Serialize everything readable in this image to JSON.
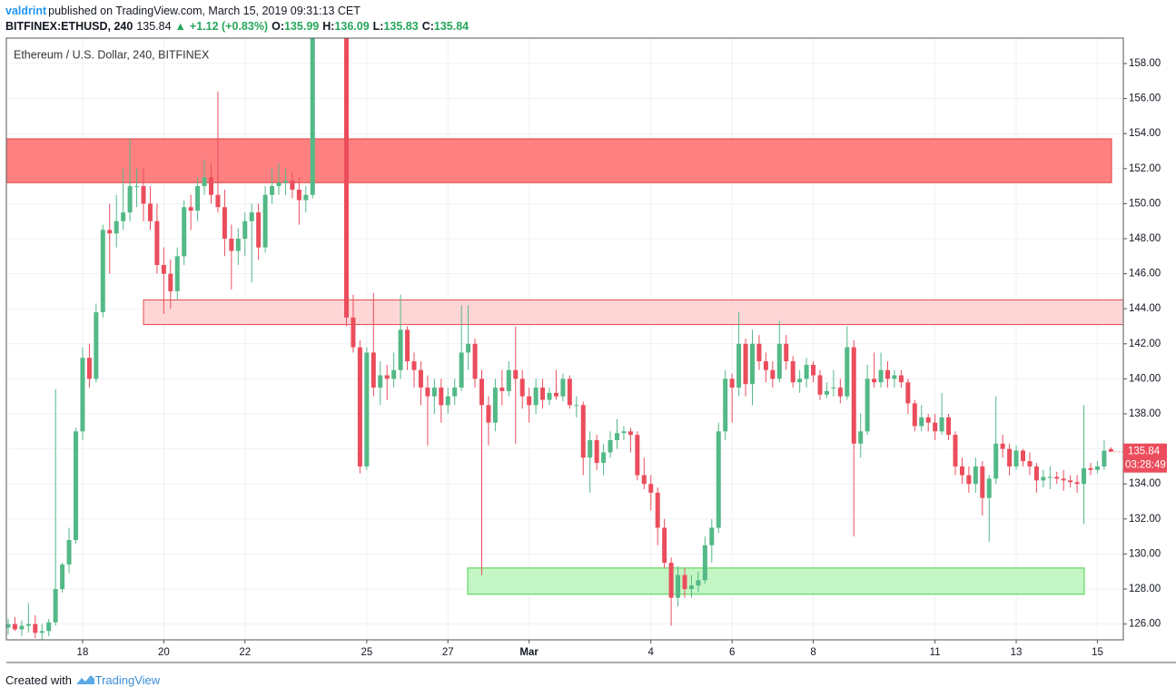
{
  "header": {
    "author": "valdrint",
    "published": "published on TradingView.com, March 15, 2019 09:31:13 CET",
    "symbol": "BITFINEX:ETHUSD, 240",
    "last": "135.84",
    "arrow": "▲",
    "change": "+1.12 (+0.83%)",
    "open_label": "O:",
    "open": "135.99",
    "high_label": "H:",
    "high": "136.09",
    "low_label": "L:",
    "low": "135.83",
    "close_label": "C:",
    "close": "135.84"
  },
  "footer": {
    "created": "Created with",
    "brand": "TradingView"
  },
  "chart_data": {
    "type": "candlestick",
    "title": "Ethereum / U.S. Dollar, 240, BITFINEX",
    "up_color": "#53b987",
    "down_color": "#eb4d5c",
    "grid": true,
    "countdown": "03:28:49",
    "ylim": [
      125.1,
      159.45
    ],
    "yticks": [
      {
        "value": 126,
        "label": "126.00"
      },
      {
        "value": 128,
        "label": "128.00"
      },
      {
        "value": 130,
        "label": "130.00"
      },
      {
        "value": 132,
        "label": "132.00"
      },
      {
        "value": 134,
        "label": "134.00"
      },
      {
        "value": 136,
        "label": "136.00"
      },
      {
        "value": 138,
        "label": "138.00"
      },
      {
        "value": 140,
        "label": "140.00"
      },
      {
        "value": 142,
        "label": "142.00"
      },
      {
        "value": 144,
        "label": "144.00"
      },
      {
        "value": 146,
        "label": "146.00"
      },
      {
        "value": 148,
        "label": "148.00"
      },
      {
        "value": 150,
        "label": "150.00"
      },
      {
        "value": 152,
        "label": "152.00"
      },
      {
        "value": 154,
        "label": "154.00"
      },
      {
        "value": 156,
        "label": "156.00"
      },
      {
        "value": 158,
        "label": "158.00"
      }
    ],
    "zones": [
      {
        "low": 151.2,
        "high": 153.7,
        "fill": "#ff8080",
        "stroke": "#e03c3c"
      },
      {
        "low": 143.1,
        "high": 144.5,
        "fill": "#ffd6d6",
        "stroke": "#e04848"
      },
      {
        "low": 127.7,
        "high": 129.2,
        "fill": "#c4f5c4",
        "stroke": "#4cd04c"
      }
    ],
    "categories": [
      null,
      null,
      null,
      null,
      null,
      null,
      null,
      null,
      null,
      null,
      null,
      "18",
      null,
      null,
      null,
      null,
      null,
      null,
      null,
      null,
      null,
      null,
      null,
      "20",
      null,
      null,
      null,
      null,
      null,
      null,
      null,
      null,
      null,
      null,
      null,
      "22",
      null,
      null,
      null,
      null,
      null,
      null,
      null,
      null,
      null,
      null,
      null,
      null,
      null,
      null,
      null,
      null,
      null,
      "25",
      null,
      null,
      null,
      null,
      null,
      null,
      null,
      null,
      null,
      null,
      null,
      "27",
      null,
      null,
      null,
      null,
      null,
      null,
      null,
      null,
      null,
      null,
      null,
      "Mar",
      null,
      null,
      null,
      null,
      null,
      null,
      null,
      null,
      null,
      null,
      null,
      null,
      null,
      null,
      null,
      null,
      null,
      "4",
      null,
      null,
      null,
      null,
      null,
      null,
      null,
      null,
      null,
      null,
      null,
      "6",
      null,
      null,
      null,
      null,
      null,
      null,
      null,
      null,
      null,
      null,
      null,
      "8",
      null,
      null,
      null,
      null,
      null,
      null,
      null,
      null,
      null,
      null,
      null,
      null,
      null,
      null,
      null,
      null,
      null,
      "11",
      null,
      null,
      null,
      null,
      null,
      null,
      null,
      null,
      null,
      null,
      null,
      "13",
      null,
      null,
      null,
      null,
      null,
      null,
      null,
      null,
      null,
      null,
      null,
      "15",
      null,
      null
    ],
    "ohlc": [
      [
        125.8,
        126.3,
        125.4,
        126.0
      ],
      [
        126.0,
        126.4,
        125.6,
        125.7
      ],
      [
        125.7,
        126.2,
        125.3,
        125.9
      ],
      [
        125.9,
        127.2,
        125.5,
        126.0
      ],
      [
        126.0,
        126.5,
        125.2,
        125.5
      ],
      [
        125.5,
        126.0,
        125.1,
        125.6
      ],
      [
        125.6,
        126.3,
        125.3,
        126.1
      ],
      [
        126.1,
        139.4,
        125.9,
        128.0
      ],
      [
        128.0,
        129.5,
        127.8,
        129.4
      ],
      [
        129.4,
        131.5,
        128.9,
        130.8
      ],
      [
        130.8,
        137.2,
        130.6,
        137.0
      ],
      [
        137.0,
        141.8,
        136.5,
        141.2
      ],
      [
        141.2,
        142.0,
        139.5,
        140.0
      ],
      [
        140.0,
        144.3,
        139.8,
        143.8
      ],
      [
        143.8,
        148.8,
        143.5,
        148.5
      ],
      [
        148.5,
        150.0,
        146.0,
        148.3
      ],
      [
        148.3,
        150.5,
        147.5,
        149.0
      ],
      [
        149.0,
        152.0,
        148.5,
        149.5
      ],
      [
        149.5,
        153.7,
        149.0,
        151.0
      ],
      [
        151.0,
        152.0,
        149.8,
        151.0
      ],
      [
        151.0,
        152.0,
        149.0,
        150.0
      ],
      [
        150.0,
        151.0,
        148.5,
        149.0
      ],
      [
        149.0,
        150.0,
        146.0,
        146.5
      ],
      [
        146.5,
        147.5,
        143.7,
        146.0
      ],
      [
        146.0,
        146.8,
        144.0,
        145.0
      ],
      [
        145.0,
        147.5,
        144.5,
        147.0
      ],
      [
        147.0,
        150.2,
        146.5,
        149.8
      ],
      [
        149.8,
        150.5,
        148.5,
        149.6
      ],
      [
        149.6,
        151.5,
        149.0,
        151.0
      ],
      [
        151.0,
        152.5,
        150.5,
        151.5
      ],
      [
        151.5,
        152.3,
        150.0,
        150.5
      ],
      [
        150.5,
        156.4,
        149.5,
        149.8
      ],
      [
        149.8,
        150.8,
        147.0,
        148.0
      ],
      [
        148.0,
        148.8,
        145.1,
        147.3
      ],
      [
        147.3,
        148.6,
        146.5,
        148.0
      ],
      [
        148.0,
        149.5,
        147.0,
        149.0
      ],
      [
        149.0,
        150.0,
        145.5,
        149.5
      ],
      [
        149.5,
        150.0,
        146.8,
        147.5
      ],
      [
        147.5,
        151.0,
        147.2,
        150.5
      ],
      [
        150.5,
        152.0,
        150.0,
        151.0
      ],
      [
        151.0,
        152.3,
        150.5,
        151.2
      ],
      [
        151.2,
        152.0,
        150.5,
        151.3
      ],
      [
        151.3,
        151.8,
        150.3,
        150.8
      ],
      [
        150.8,
        151.5,
        148.8,
        150.2
      ],
      [
        150.2,
        151.0,
        149.5,
        150.5
      ],
      [
        150.5,
        162.0,
        150.3,
        161.0
      ],
      null,
      null,
      null,
      null,
      [
        160.5,
        161.0,
        143.0,
        143.5
      ],
      [
        143.5,
        144.8,
        141.5,
        141.8
      ],
      [
        141.8,
        142.2,
        134.6,
        135.0
      ],
      [
        135.0,
        141.8,
        134.8,
        141.5
      ],
      [
        141.5,
        144.9,
        139.0,
        139.5
      ],
      [
        139.5,
        141.0,
        138.5,
        140.2
      ],
      [
        140.2,
        140.8,
        138.8,
        140.0
      ],
      [
        140.0,
        141.5,
        139.5,
        140.5
      ],
      [
        140.5,
        144.8,
        140.0,
        142.8
      ],
      [
        142.8,
        143.0,
        140.5,
        141.0
      ],
      [
        141.0,
        141.5,
        139.5,
        140.5
      ],
      [
        140.5,
        141.0,
        138.5,
        139.5
      ],
      [
        139.5,
        140.2,
        136.2,
        139.0
      ],
      [
        139.0,
        140.0,
        138.0,
        139.5
      ],
      [
        139.5,
        140.0,
        137.5,
        138.5
      ],
      [
        138.5,
        139.5,
        138.0,
        139.0
      ],
      [
        139.0,
        140.0,
        138.5,
        139.5
      ],
      [
        139.5,
        144.2,
        139.3,
        141.5
      ],
      [
        141.5,
        144.2,
        140.5,
        142.0
      ],
      [
        142.0,
        142.3,
        139.5,
        140.0
      ],
      [
        140.0,
        140.5,
        128.8,
        138.5
      ],
      [
        138.5,
        139.0,
        136.2,
        137.5
      ],
      [
        137.5,
        140.0,
        137.0,
        139.5
      ],
      [
        139.5,
        140.5,
        138.5,
        139.3
      ],
      [
        139.3,
        141.0,
        139.0,
        140.5
      ],
      [
        140.5,
        143.0,
        136.3,
        140.0
      ],
      [
        140.0,
        140.5,
        138.3,
        139.0
      ],
      [
        139.0,
        139.5,
        137.5,
        138.5
      ],
      [
        138.5,
        140.0,
        138.0,
        139.5
      ],
      [
        139.5,
        140.0,
        138.3,
        138.8
      ],
      [
        138.8,
        139.5,
        138.5,
        139.2
      ],
      [
        139.2,
        140.5,
        138.8,
        139.0
      ],
      [
        139.0,
        140.3,
        138.7,
        140.0
      ],
      [
        140.0,
        140.2,
        138.3,
        138.5
      ],
      [
        138.5,
        139.0,
        137.8,
        138.5
      ],
      [
        138.5,
        138.7,
        134.5,
        135.5
      ],
      [
        135.5,
        137.0,
        133.5,
        136.5
      ],
      [
        136.5,
        136.8,
        134.8,
        135.2
      ],
      [
        135.2,
        136.3,
        134.5,
        135.8
      ],
      [
        135.8,
        137.0,
        135.5,
        136.5
      ],
      [
        136.5,
        137.7,
        136.0,
        136.9
      ],
      [
        136.9,
        137.3,
        136.5,
        137.0
      ],
      [
        137.0,
        137.2,
        135.8,
        136.8
      ],
      [
        136.8,
        137.0,
        134.2,
        134.5
      ],
      [
        134.5,
        135.5,
        133.7,
        134.0
      ],
      [
        134.0,
        134.5,
        132.5,
        133.5
      ],
      [
        133.5,
        133.8,
        130.5,
        131.5
      ],
      [
        131.5,
        132.0,
        129.2,
        129.5
      ],
      [
        129.5,
        129.8,
        125.9,
        127.5
      ],
      [
        127.5,
        129.3,
        127.0,
        128.8
      ],
      [
        128.8,
        129.2,
        127.5,
        128.0
      ],
      [
        128.0,
        128.8,
        127.5,
        128.2
      ],
      [
        128.2,
        129.0,
        127.8,
        128.5
      ],
      [
        128.5,
        131.0,
        128.3,
        130.5
      ],
      [
        130.5,
        132.0,
        129.5,
        131.5
      ],
      [
        131.5,
        137.5,
        131.2,
        137.0
      ],
      [
        137.0,
        140.5,
        136.5,
        140.0
      ],
      [
        140.0,
        140.3,
        137.5,
        139.5
      ],
      [
        139.5,
        143.8,
        139.0,
        142.0
      ],
      [
        142.0,
        142.3,
        139.0,
        139.7
      ],
      [
        139.7,
        142.8,
        138.5,
        142.0
      ],
      [
        142.0,
        142.5,
        140.5,
        141.0
      ],
      [
        141.0,
        141.5,
        139.8,
        140.5
      ],
      [
        140.5,
        141.0,
        139.5,
        140.0
      ],
      [
        140.0,
        143.3,
        139.8,
        142.0
      ],
      [
        142.0,
        142.5,
        140.5,
        141.0
      ],
      [
        141.0,
        141.3,
        139.5,
        139.8
      ],
      [
        139.8,
        140.5,
        139.2,
        140.0
      ],
      [
        140.0,
        141.2,
        139.5,
        140.8
      ],
      [
        140.8,
        141.0,
        139.8,
        140.2
      ],
      [
        140.2,
        140.5,
        138.8,
        139.1
      ],
      [
        139.1,
        139.8,
        138.9,
        139.3
      ],
      [
        139.5,
        140.5,
        139.0,
        139.5
      ],
      [
        139.5,
        140.0,
        138.6,
        139.0
      ],
      [
        139.0,
        143.0,
        138.8,
        141.8
      ],
      [
        141.8,
        142.2,
        131.0,
        136.3
      ],
      [
        136.3,
        138.0,
        135.5,
        137.0
      ],
      [
        137.0,
        140.8,
        136.8,
        140.0
      ],
      [
        140.0,
        141.5,
        139.5,
        139.8
      ],
      [
        139.8,
        141.5,
        139.5,
        140.5
      ],
      [
        140.5,
        141.0,
        139.5,
        140.0
      ],
      [
        140.0,
        140.5,
        139.5,
        140.2
      ],
      [
        140.2,
        140.5,
        139.5,
        139.8
      ],
      [
        139.8,
        140.0,
        138.0,
        138.6
      ],
      [
        138.6,
        138.8,
        137.0,
        137.3
      ],
      [
        137.3,
        138.5,
        137.0,
        137.8
      ],
      [
        137.8,
        138.0,
        137.0,
        137.5
      ],
      [
        137.5,
        138.0,
        136.5,
        137.0
      ],
      [
        137.0,
        139.2,
        136.8,
        137.8
      ],
      [
        137.8,
        138.0,
        136.5,
        136.8
      ],
      [
        136.8,
        137.0,
        134.5,
        135.0
      ],
      [
        135.0,
        135.5,
        134.0,
        134.5
      ],
      [
        134.5,
        135.0,
        133.5,
        134.0
      ],
      [
        134.0,
        135.5,
        133.5,
        135.0
      ],
      [
        135.0,
        135.3,
        132.2,
        133.2
      ],
      [
        133.2,
        134.5,
        130.7,
        134.3
      ],
      [
        134.3,
        139.0,
        134.0,
        136.3
      ],
      [
        136.3,
        136.8,
        135.5,
        136.0
      ],
      [
        136.0,
        136.3,
        134.5,
        135.0
      ],
      [
        135.0,
        136.2,
        134.8,
        135.9
      ],
      [
        135.9,
        136.0,
        135.0,
        135.3
      ],
      [
        135.3,
        135.8,
        134.5,
        135.0
      ],
      [
        135.0,
        135.2,
        133.5,
        134.2
      ],
      [
        134.2,
        134.8,
        133.8,
        134.4
      ],
      [
        134.4,
        135.0,
        133.7,
        134.4
      ],
      [
        134.4,
        134.7,
        134.0,
        134.3
      ],
      [
        134.3,
        134.8,
        133.6,
        134.2
      ],
      [
        134.2,
        134.5,
        133.8,
        134.1
      ],
      [
        134.1,
        134.5,
        133.5,
        134.0
      ],
      [
        134.0,
        138.5,
        131.7,
        134.9
      ],
      [
        134.9,
        135.2,
        134.5,
        134.8
      ],
      [
        134.8,
        135.3,
        134.6,
        135.0
      ],
      [
        135.0,
        136.5,
        134.8,
        135.9
      ],
      [
        135.99,
        136.09,
        135.83,
        135.84
      ]
    ]
  }
}
